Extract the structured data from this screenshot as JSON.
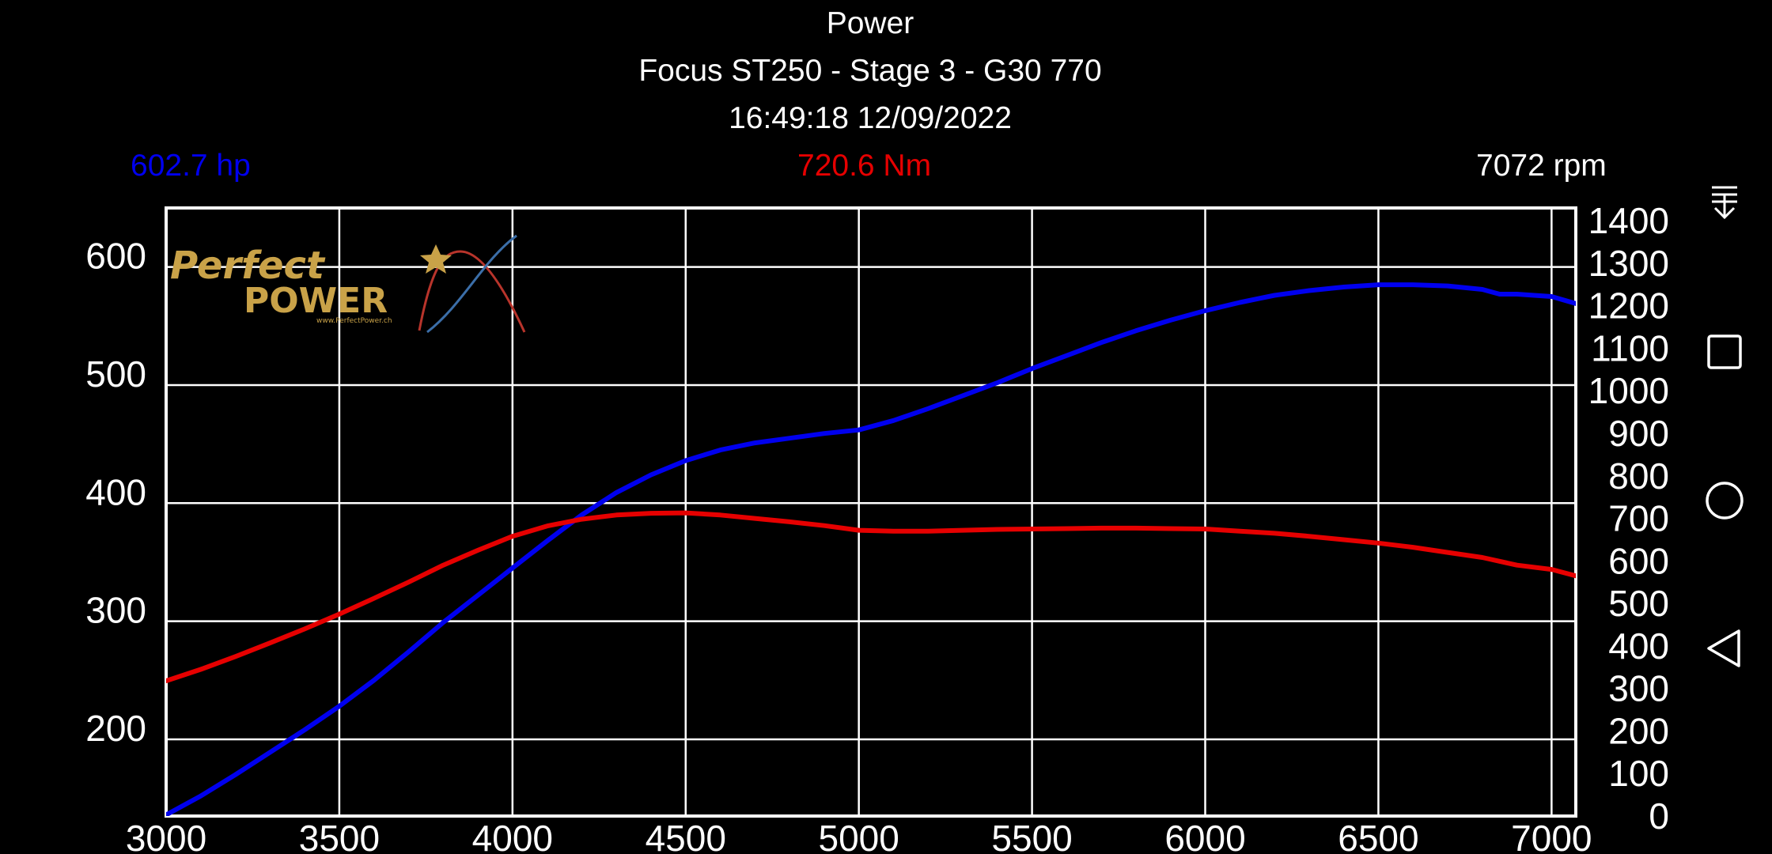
{
  "header": {
    "title": "Power",
    "vehicle": "Focus ST250 - Stage 3 - G30 770",
    "timestamp": "16:49:18 12/09/2022"
  },
  "readouts": {
    "power": "602.7 hp",
    "torque": "720.6 Nm",
    "rpm": "7072 rpm"
  },
  "colors": {
    "power": "#0000ee",
    "torque": "#e60000",
    "grid": "#ffffff",
    "background": "#000000",
    "logo_gold": "#c9a248"
  },
  "logo": {
    "line1": "Perfect",
    "line2": "POWER",
    "url": "www.PerfectPower.ch"
  },
  "navbar": {
    "icons": [
      "collapse-icon",
      "recent-apps-icon",
      "home-icon",
      "back-icon"
    ]
  },
  "chart_data": {
    "type": "line",
    "x_ticks": [
      "3000",
      "3500",
      "4000",
      "4500",
      "5000",
      "5500",
      "6000",
      "6500",
      "7000"
    ],
    "y_left_ticks": [
      "200",
      "300",
      "400",
      "500",
      "600"
    ],
    "y_right_ticks": [
      "0",
      "100",
      "200",
      "300",
      "400",
      "500",
      "600",
      "700",
      "800",
      "900",
      "1000",
      "1100",
      "1200",
      "1300",
      "1400"
    ],
    "xlim": [
      3000,
      7070
    ],
    "ylim_left": [
      135,
      650
    ],
    "ylim_right": [
      0,
      1430
    ],
    "grid": true,
    "series": [
      {
        "name": "hp",
        "axis": "left",
        "x": [
          3000,
          3100,
          3200,
          3300,
          3400,
          3500,
          3600,
          3700,
          3800,
          3900,
          4000,
          4100,
          4200,
          4300,
          4400,
          4500,
          4600,
          4700,
          4800,
          4900,
          5000,
          5100,
          5200,
          5300,
          5400,
          5500,
          5600,
          5700,
          5800,
          5900,
          6000,
          6100,
          6200,
          6300,
          6400,
          6500,
          6600,
          6700,
          6800,
          6850,
          6900,
          7000,
          7070
        ],
        "values": [
          136,
          152,
          170,
          189,
          208,
          228,
          250,
          274,
          299,
          322,
          345,
          368,
          390,
          409,
          424,
          436,
          445,
          451,
          455,
          459,
          462,
          470,
          480,
          491,
          502,
          514,
          525,
          536,
          546,
          555,
          563,
          570,
          576,
          580,
          583,
          585,
          585,
          584,
          581,
          577,
          577,
          575,
          569
        ]
      },
      {
        "name": "Nm",
        "axis": "right",
        "x": [
          3000,
          3100,
          3200,
          3300,
          3400,
          3500,
          3600,
          3700,
          3800,
          3900,
          4000,
          4100,
          4200,
          4300,
          4400,
          4500,
          4600,
          4700,
          4800,
          4900,
          5000,
          5100,
          5200,
          5300,
          5400,
          5500,
          5600,
          5700,
          5800,
          5900,
          6000,
          6100,
          6200,
          6300,
          6400,
          6500,
          6600,
          6700,
          6800,
          6900,
          7000,
          7070
        ],
        "values": [
          318,
          345,
          375,
          407,
          440,
          475,
          512,
          550,
          590,
          625,
          658,
          682,
          698,
          708,
          712,
          713,
          708,
          700,
          692,
          683,
          672,
          670,
          670,
          672,
          674,
          675,
          676,
          677,
          677,
          676,
          675,
          670,
          665,
          658,
          650,
          642,
          632,
          620,
          608,
          590,
          580,
          565
        ]
      }
    ]
  }
}
